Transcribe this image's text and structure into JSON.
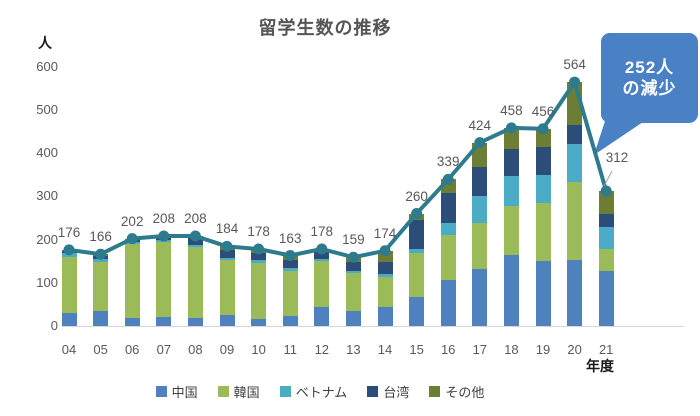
{
  "title": "留学生数の推移",
  "y_axis": {
    "unit_label": "人",
    "ticks": [
      600,
      500,
      400,
      300,
      200,
      100,
      0
    ]
  },
  "x_axis": {
    "label": "年度"
  },
  "callout": {
    "line1": "252人",
    "line2": "の減少",
    "color": "#4a80c4",
    "text_color": "#ffffff"
  },
  "colors": {
    "line": "#2e7b8d",
    "label_text": "#595959",
    "axis_line": "#d6d6d6",
    "leader_line": "#a0a0a0"
  },
  "chart_data": {
    "type": "bar",
    "subtype": "stacked-bar-with-total-line",
    "title": "留学生数の推移",
    "xlabel": "年度",
    "ylabel": "人",
    "ylim": [
      0,
      600
    ],
    "grid": false,
    "legend_position": "bottom",
    "categories": [
      "04",
      "05",
      "06",
      "07",
      "08",
      "09",
      "10",
      "11",
      "12",
      "13",
      "14",
      "15",
      "16",
      "17",
      "18",
      "19",
      "20",
      "21"
    ],
    "series": [
      {
        "name": "中国",
        "color": "#4e81bd",
        "values": [
          31,
          34,
          18,
          20,
          18,
          25,
          16,
          22,
          45,
          35,
          45,
          68,
          106,
          131,
          164,
          151,
          153,
          127
        ]
      },
      {
        "name": "韓国",
        "color": "#9bbb59",
        "values": [
          129,
          115,
          172,
          175,
          165,
          127,
          130,
          106,
          105,
          88,
          68,
          100,
          104,
          107,
          114,
          134,
          179,
          50
        ]
      },
      {
        "name": "ベトナム",
        "color": "#4bacc6",
        "values": [
          8,
          6,
          4,
          4,
          5,
          5,
          6,
          6,
          5,
          5,
          8,
          9,
          29,
          63,
          69,
          64,
          89,
          52
        ]
      },
      {
        "name": "台湾",
        "color": "#2b4d77",
        "values": [
          5,
          7,
          6,
          6,
          15,
          18,
          17,
          19,
          15,
          20,
          27,
          68,
          68,
          66,
          62,
          65,
          44,
          29
        ]
      },
      {
        "name": "その他",
        "color": "#6c7e34",
        "values": [
          3,
          4,
          2,
          3,
          5,
          9,
          9,
          10,
          8,
          11,
          26,
          15,
          32,
          57,
          49,
          42,
          99,
          54
        ]
      }
    ],
    "totals": [
      176,
      166,
      202,
      208,
      208,
      184,
      178,
      163,
      178,
      159,
      174,
      260,
      339,
      424,
      458,
      456,
      564,
      312
    ],
    "annotation": "252人の減少"
  }
}
